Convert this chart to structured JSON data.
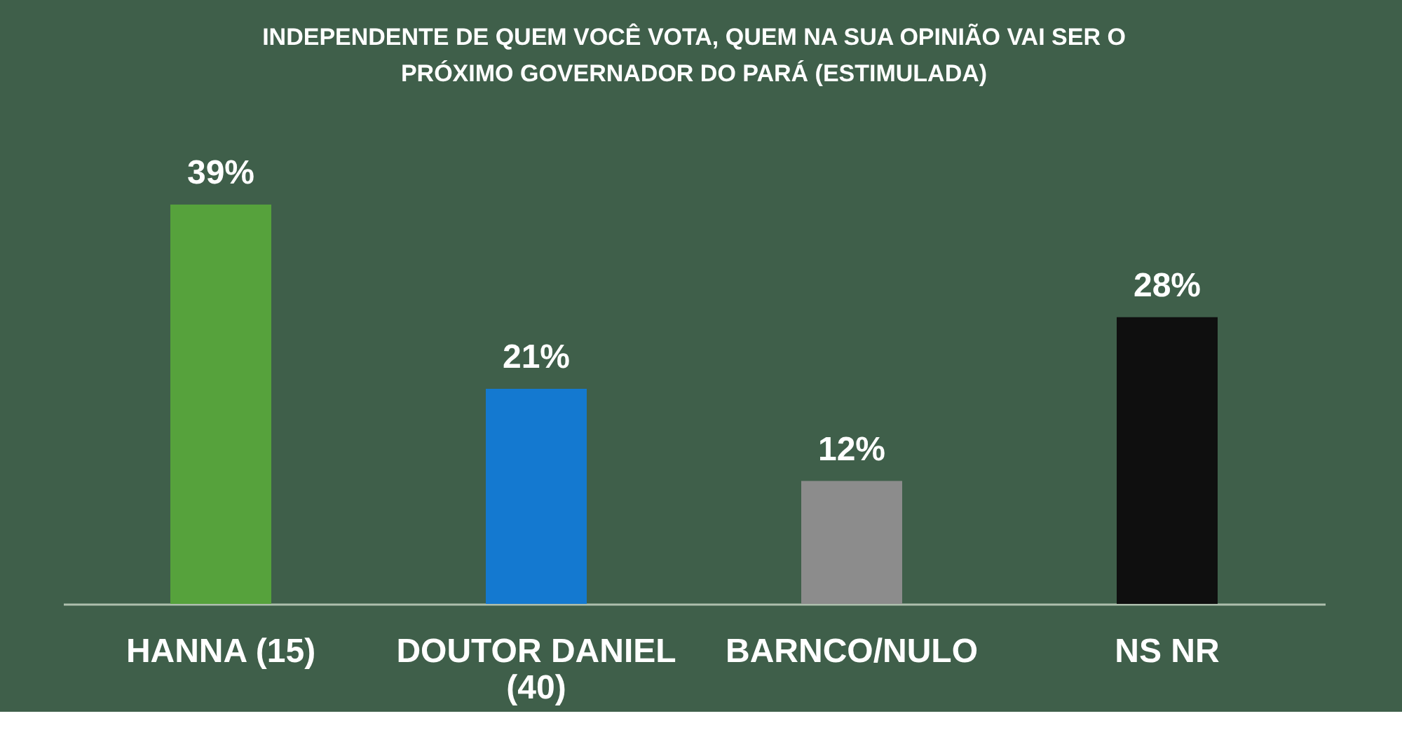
{
  "chart_data": {
    "type": "bar",
    "title": "INDEPENDENTE DE QUEM VOCÊ VOTA, QUEM NA SUA OPINIÃO VAI SER O PRÓXIMO GOVERNADOR DO PARÁ (ESTIMULADA)",
    "categories": [
      "HANNA (15)",
      "DOUTOR DANIEL (40)",
      "BARNCO/NULO",
      "NS NR"
    ],
    "values": [
      39,
      21,
      12,
      28
    ],
    "colors": [
      "#56a23c",
      "#1479d0",
      "#8c8c8c",
      "#0f0f0f"
    ],
    "value_labels": [
      "39%",
      "21%",
      "12%",
      "28%"
    ],
    "grid": false,
    "legend": false
  }
}
